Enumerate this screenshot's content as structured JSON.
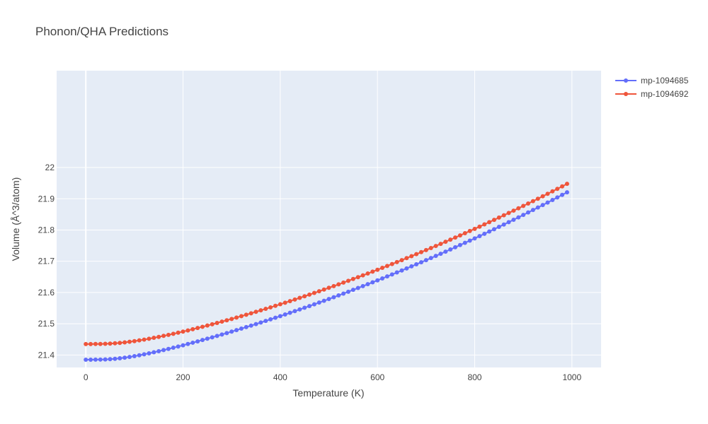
{
  "chart_data": {
    "type": "line",
    "title": "Phonon/QHA Predictions",
    "xlabel": "Temperature (K)",
    "ylabel": "Volume (Å^3/atom)",
    "xlim": [
      -60,
      1060
    ],
    "ylim": [
      21.36,
      22.31
    ],
    "xticks": [
      0,
      200,
      400,
      600,
      800,
      1000
    ],
    "xtick_labels": [
      "0",
      "200",
      "400",
      "600",
      "800",
      "1000"
    ],
    "yticks": [
      21.4,
      21.5,
      21.6,
      21.7,
      21.8,
      21.9,
      22.0
    ],
    "ytick_labels": [
      "21.4",
      "21.5",
      "21.6",
      "21.7",
      "21.8",
      "21.9",
      "22"
    ],
    "grid": true,
    "legend_position": "top-right outside",
    "background": "#e5ecf6",
    "x": [
      0,
      10,
      20,
      30,
      40,
      50,
      60,
      70,
      80,
      90,
      100,
      110,
      120,
      130,
      140,
      150,
      160,
      170,
      180,
      190,
      200,
      210,
      220,
      230,
      240,
      250,
      260,
      270,
      280,
      290,
      300,
      310,
      320,
      330,
      340,
      350,
      360,
      370,
      380,
      390,
      400,
      410,
      420,
      430,
      440,
      450,
      460,
      470,
      480,
      490,
      500,
      510,
      520,
      530,
      540,
      550,
      560,
      570,
      580,
      590,
      600,
      610,
      620,
      630,
      640,
      650,
      660,
      670,
      680,
      690,
      700,
      710,
      720,
      730,
      740,
      750,
      760,
      770,
      780,
      790,
      800,
      810,
      820,
      830,
      840,
      850,
      860,
      870,
      880,
      890,
      900,
      910,
      920,
      930,
      940,
      950,
      960,
      970,
      980,
      990
    ],
    "series": [
      {
        "name": "mp-1094685",
        "color": "#636efa",
        "values": [
          21.385,
          21.385,
          21.3851,
          21.3853,
          21.3858,
          21.3866,
          21.3878,
          21.3894,
          21.3914,
          21.3937,
          21.3963,
          21.3991,
          21.4021,
          21.4053,
          21.4086,
          21.4121,
          21.4157,
          21.4194,
          21.4232,
          21.4271,
          21.4311,
          21.4352,
          21.4393,
          21.4435,
          21.4478,
          21.4521,
          21.4565,
          21.461,
          21.4655,
          21.4701,
          21.4748,
          21.4795,
          21.4843,
          21.4891,
          21.494,
          21.4989,
          21.5039,
          21.5089,
          21.514,
          21.5192,
          21.5244,
          21.5296,
          21.5349,
          21.5403,
          21.5457,
          21.5511,
          21.5566,
          21.5622,
          21.5678,
          21.5734,
          21.5791,
          21.5849,
          21.5907,
          21.5965,
          21.6024,
          21.6084,
          21.6144,
          21.6204,
          21.6265,
          21.6326,
          21.6388,
          21.6451,
          21.6514,
          21.6577,
          21.6641,
          21.6705,
          21.677,
          21.6836,
          21.6902,
          21.6968,
          21.7035,
          21.7102,
          21.717,
          21.7239,
          21.7308,
          21.7377,
          21.7447,
          21.7518,
          21.7589,
          21.766,
          21.7732,
          21.7805,
          21.7878,
          21.7952,
          21.8026,
          21.8101,
          21.8176,
          21.8252,
          21.8328,
          21.8405,
          21.8483,
          21.8561,
          21.864,
          21.8719,
          21.8799,
          21.8879,
          21.896,
          21.9042,
          21.9124,
          21.9207
        ]
      },
      {
        "name": "mp-1094692",
        "color": "#ef553b",
        "values": [
          21.435,
          21.435,
          21.4351,
          21.4353,
          21.4357,
          21.4364,
          21.4374,
          21.4387,
          21.4403,
          21.4422,
          21.4443,
          21.4467,
          21.4492,
          21.452,
          21.4549,
          21.4579,
          21.4611,
          21.4644,
          21.4678,
          21.4713,
          21.4749,
          21.4786,
          21.4824,
          21.4863,
          21.4902,
          21.4942,
          21.4983,
          21.5025,
          21.5067,
          21.511,
          21.5153,
          21.5198,
          21.5243,
          21.5288,
          21.5334,
          21.5381,
          21.5428,
          21.5476,
          21.5524,
          21.5573,
          21.5623,
          21.5673,
          21.5724,
          21.5775,
          21.5827,
          21.5879,
          21.5932,
          21.5985,
          21.6039,
          21.6094,
          21.6149,
          21.6204,
          21.626,
          21.6317,
          21.6374,
          21.6432,
          21.649,
          21.6548,
          21.6607,
          21.6667,
          21.6727,
          21.6788,
          21.6849,
          21.6911,
          21.6973,
          21.7036,
          21.7099,
          21.7163,
          21.7227,
          21.7292,
          21.7357,
          21.7423,
          21.7489,
          21.7556,
          21.7623,
          21.7691,
          21.7759,
          21.7828,
          21.7897,
          21.7967,
          21.8037,
          21.8108,
          21.818,
          21.8252,
          21.8324,
          21.8397,
          21.8471,
          21.8545,
          21.862,
          21.8695,
          21.8771,
          21.8847,
          21.8924,
          21.9001,
          21.9079,
          21.9158,
          21.9237,
          21.9317,
          21.9397,
          21.9478
        ]
      }
    ]
  }
}
